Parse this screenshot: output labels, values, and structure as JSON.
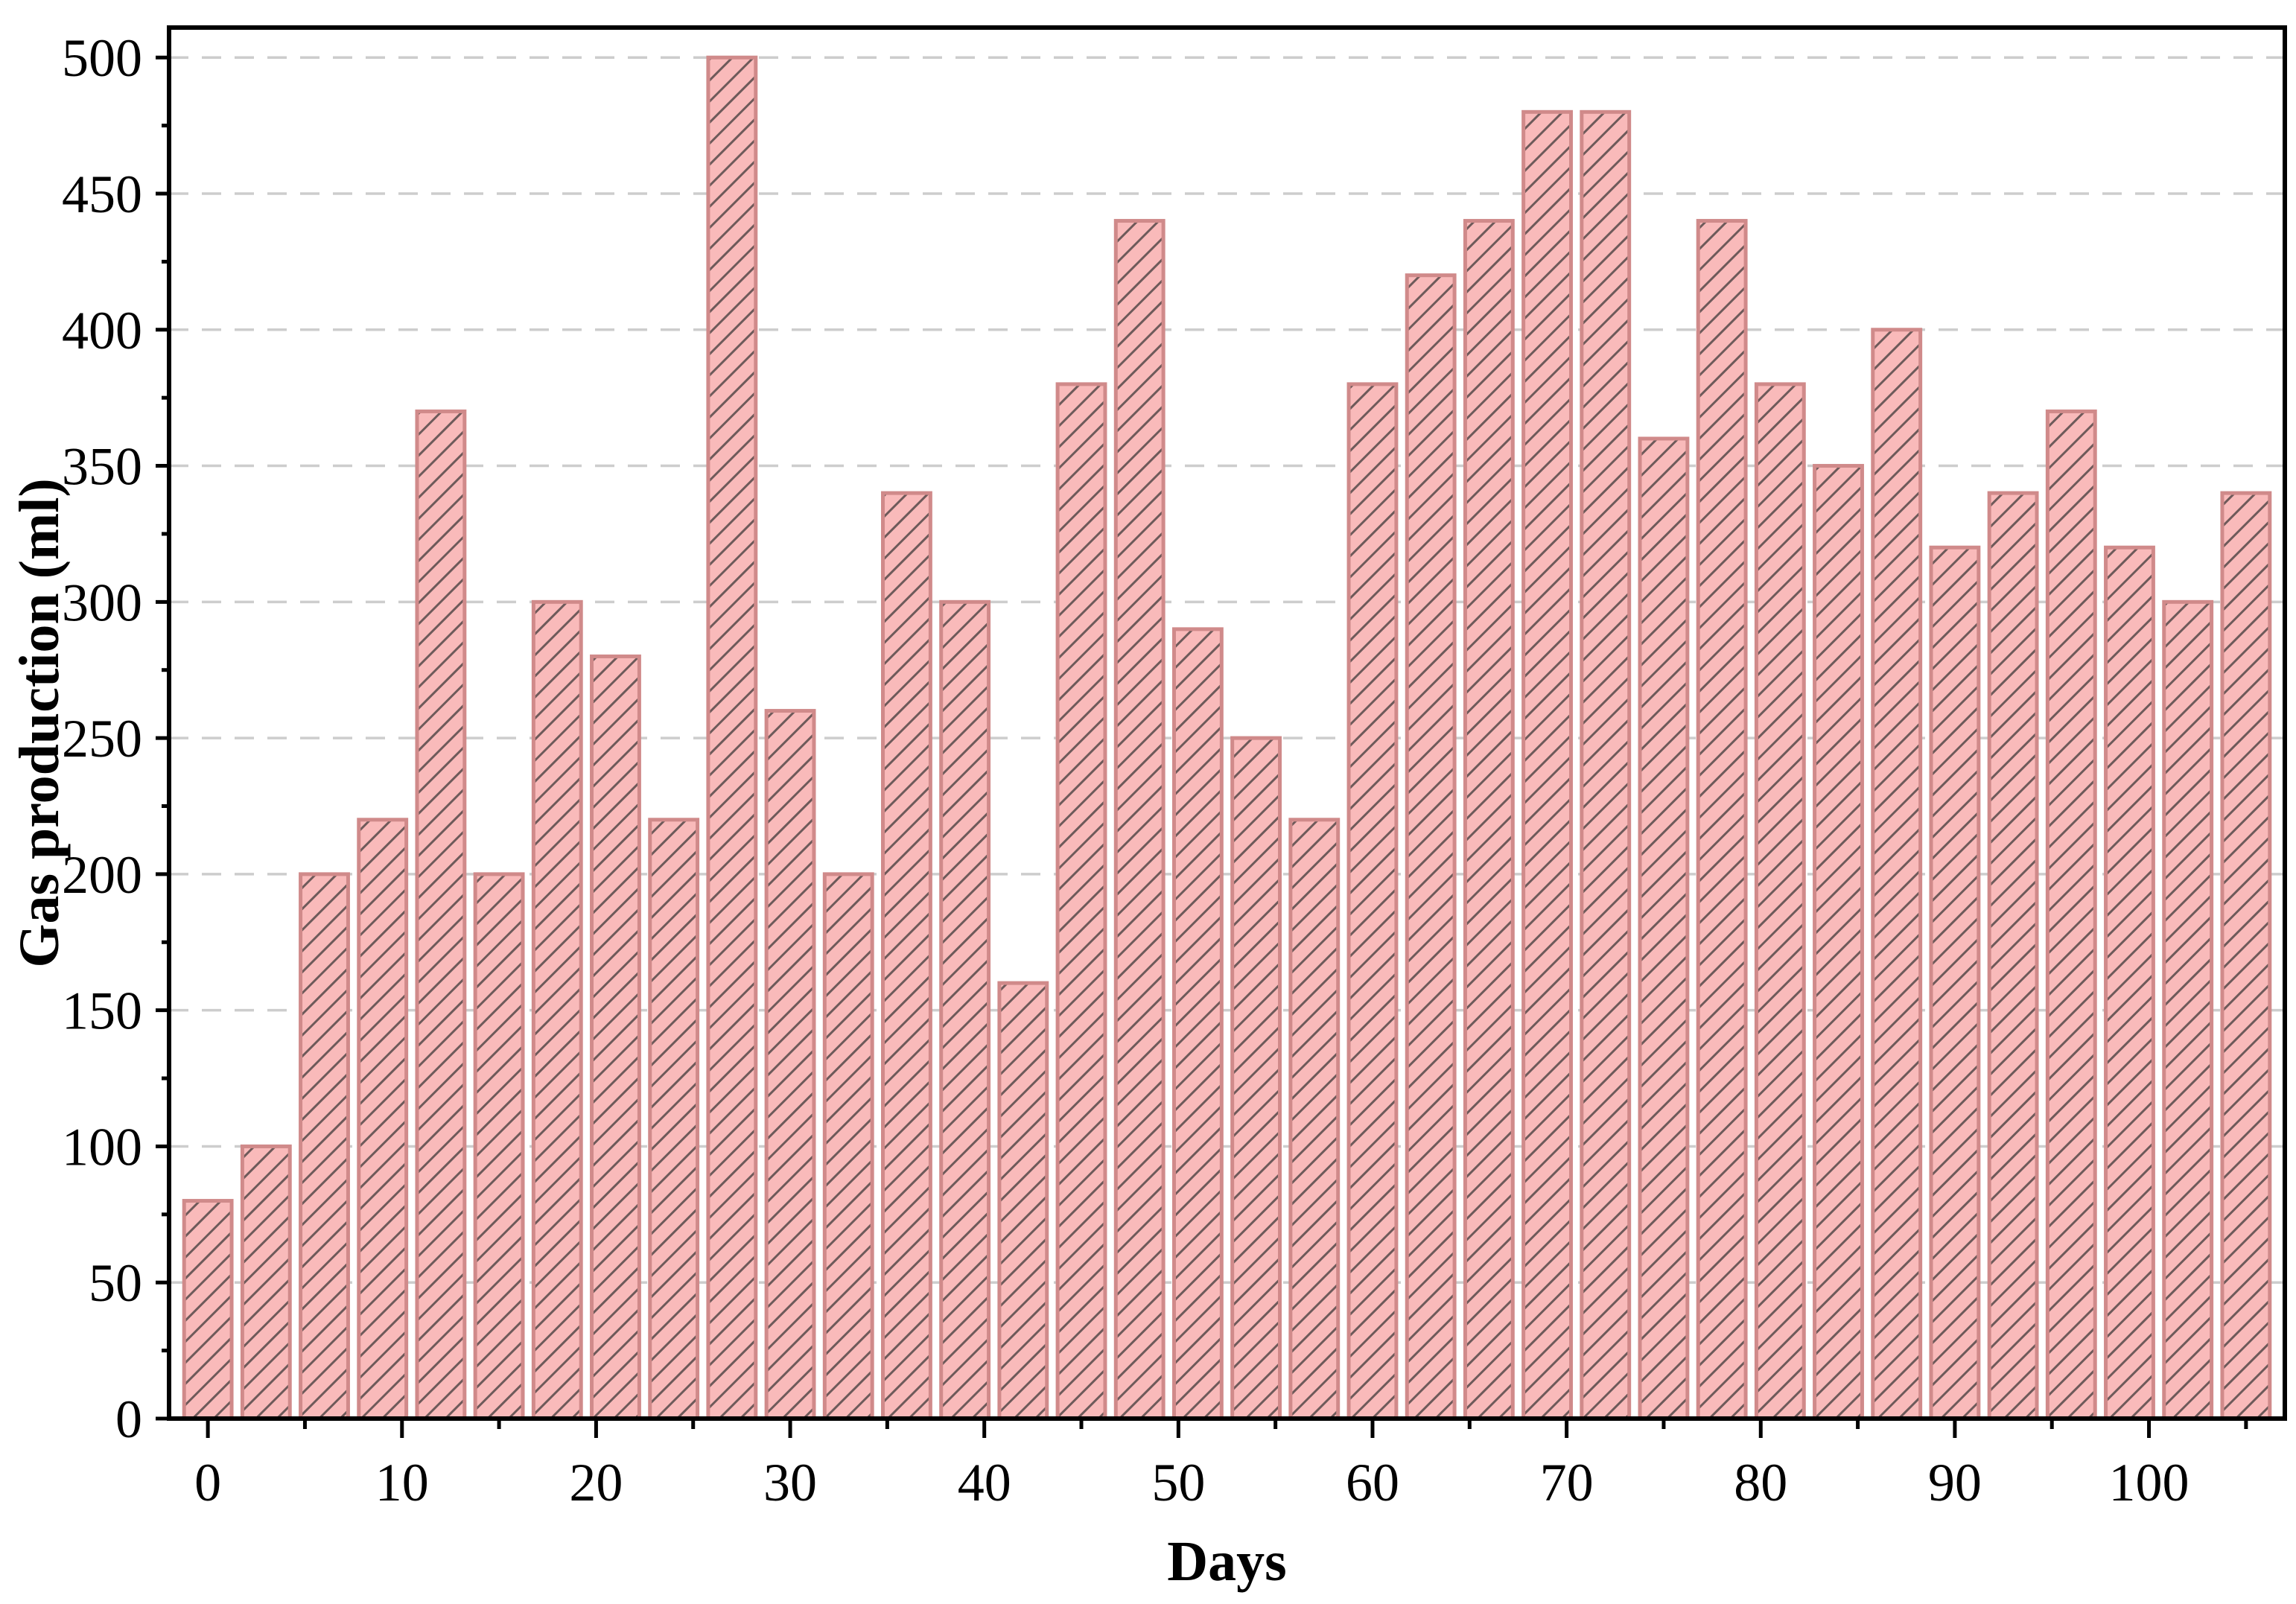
{
  "figure": {
    "background": "#ffffff",
    "type_note": "hatched bar chart, no title, no legend"
  },
  "chart_data": {
    "type": "bar",
    "title": "",
    "xlabel": "Days",
    "ylabel": "Gas production (ml)",
    "x": [
      0,
      3,
      6,
      9,
      12,
      15,
      18,
      21,
      24,
      27,
      30,
      33,
      36,
      39,
      42,
      45,
      48,
      51,
      54,
      57,
      60,
      63,
      66,
      69,
      72,
      75,
      78,
      81,
      84,
      87,
      90,
      93,
      96,
      99,
      102,
      105
    ],
    "values": [
      80,
      100,
      200,
      220,
      370,
      200,
      300,
      280,
      220,
      500,
      260,
      200,
      340,
      300,
      160,
      380,
      440,
      290,
      250,
      220,
      380,
      420,
      440,
      480,
      480,
      360,
      440,
      380,
      350,
      400,
      320,
      340,
      370,
      320,
      300,
      340
    ],
    "bar_width_days": 2.45,
    "xlim": [
      -2,
      107
    ],
    "ylim": [
      0,
      511
    ],
    "x_major_ticks": [
      0,
      10,
      20,
      30,
      40,
      50,
      60,
      70,
      80,
      90,
      100
    ],
    "x_minor_ticks": [
      5,
      15,
      25,
      35,
      45,
      55,
      65,
      75,
      85,
      95,
      105
    ],
    "y_major_ticks": [
      0,
      50,
      100,
      150,
      200,
      250,
      300,
      350,
      400,
      450,
      500
    ],
    "y_minor_ticks": [
      25,
      75,
      125,
      175,
      225,
      275,
      325,
      375,
      425,
      475
    ],
    "grid": "horizontal dashed gridlines at major y ticks",
    "legend": "none",
    "hatch_style": "diagonal / lines",
    "colors": {
      "bar_fill": "#F9BABA",
      "bar_edge": "#D08A8A",
      "hatch_line": "#6E5A5A",
      "gridline": "#CDCDCD",
      "frame": "#000000",
      "text": "#000000"
    }
  }
}
